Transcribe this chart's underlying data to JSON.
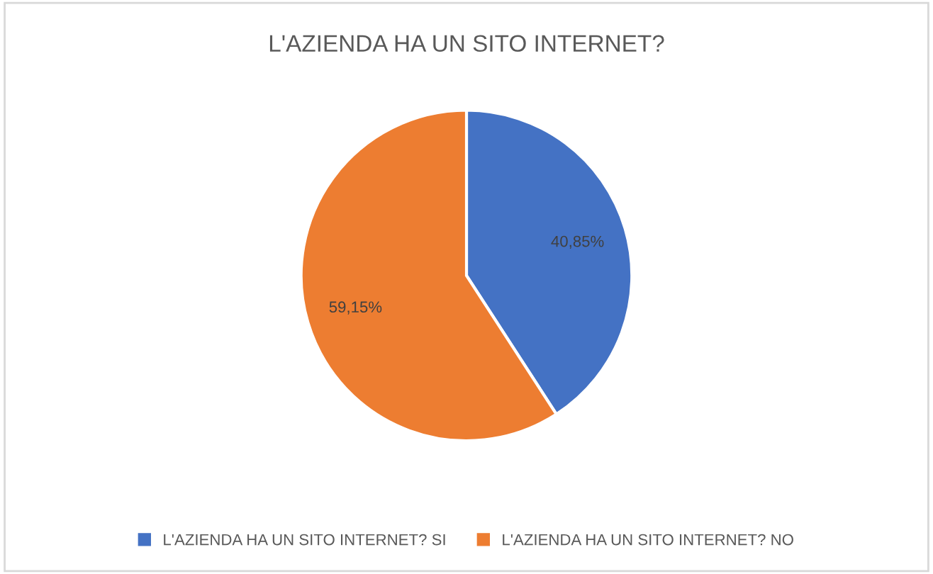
{
  "chart_data": {
    "type": "pie",
    "title": "L'AZIENDA HA UN SITO INTERNET?",
    "categories": [
      "L'AZIENDA HA UN SITO INTERNET? SI",
      "L'AZIENDA HA UN SITO INTERNET? NO"
    ],
    "values": [
      40.85,
      59.15
    ],
    "colors": [
      "#4472c4",
      "#ed7d31"
    ],
    "value_labels": [
      "40,85%",
      "59,15%"
    ],
    "legend": "bottom"
  }
}
